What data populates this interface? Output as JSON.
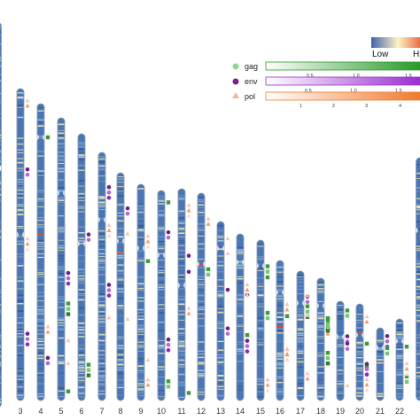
{
  "heat_scale": {
    "low_label": "Low",
    "high_label": "High",
    "low_color": "#3f64ad",
    "mid_color": "#fdf2c4",
    "high_color": "#e1572f"
  },
  "chromosome_color": "#4a76b5",
  "chromosome_labels": [
    "3",
    "4",
    "5",
    "6",
    "7",
    "8",
    "9",
    "10",
    "11",
    "12",
    "13",
    "14",
    "15",
    "16",
    "17",
    "18",
    "19",
    "20",
    "21",
    "22"
  ],
  "legend": [
    {
      "name": "gag",
      "marker": "circle",
      "color": "#8fd88f",
      "gradient": [
        "#ffffff",
        "#2a9a2a"
      ],
      "ticks": [
        "0.5",
        "1.0",
        "1.5"
      ]
    },
    {
      "name": "env",
      "marker": "circle",
      "color": "#7a1f8f",
      "gradient": [
        "#ffffff",
        "#9a2fd0"
      ],
      "ticks": [
        "0.5",
        "1.0",
        "1.5"
      ]
    },
    {
      "name": "pol",
      "marker": "triangle",
      "color": "#f4b3a4",
      "gradient": [
        "#ffffff",
        "#f07a30"
      ],
      "ticks": [
        "1",
        "2",
        "3",
        "4"
      ]
    }
  ]
}
